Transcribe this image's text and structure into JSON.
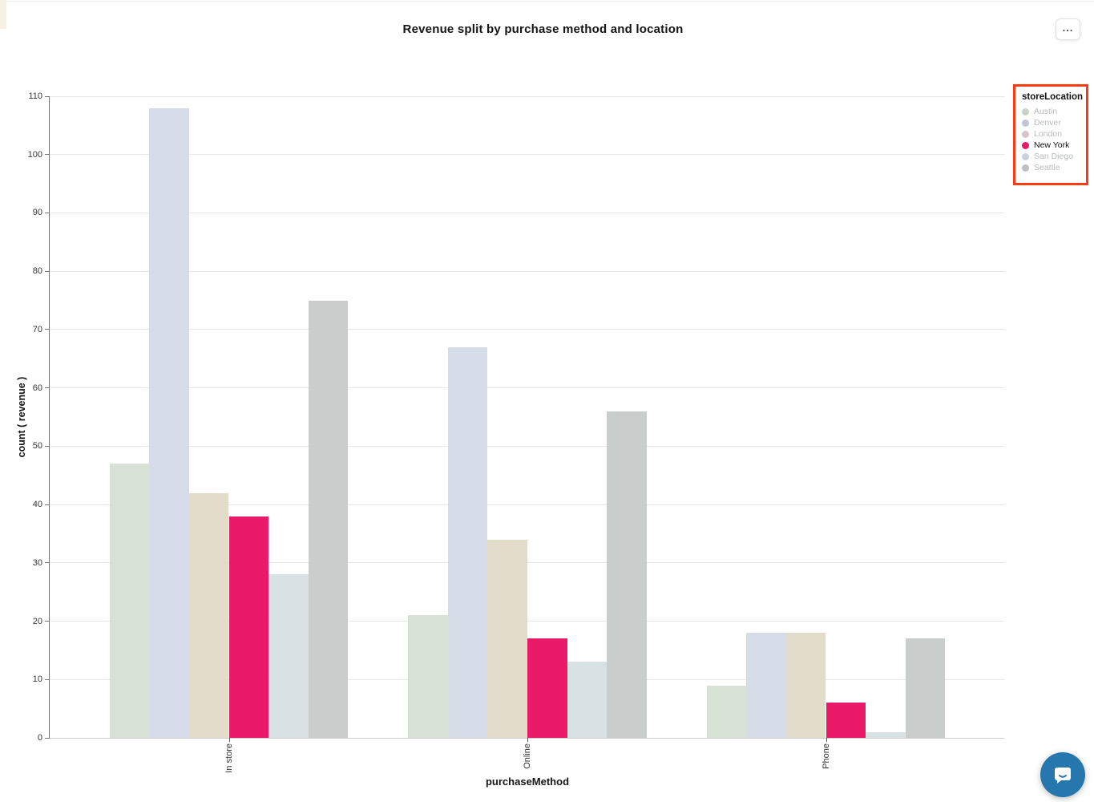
{
  "header": {
    "title": "Revenue split by purchase method and location"
  },
  "toolbar": {
    "more_icon": "..."
  },
  "chart_data": {
    "type": "bar",
    "title": "Revenue split by purchase method and location",
    "xlabel": "purchaseMethod",
    "ylabel": "count ( revenue )",
    "categories": [
      "In store",
      "Online",
      "Phone"
    ],
    "series": [
      {
        "name": "Austin",
        "color": "#d3ded2",
        "selected": false,
        "values": [
          47,
          21,
          9
        ]
      },
      {
        "name": "Denver",
        "color": "#d2d9e6",
        "selected": false,
        "values": [
          108,
          67,
          18
        ]
      },
      {
        "name": "London",
        "color": "#ded9c4",
        "selected": false,
        "values": [
          42,
          34,
          18
        ]
      },
      {
        "name": "New York",
        "color": "#e91a67",
        "selected": true,
        "values": [
          38,
          17,
          6
        ]
      },
      {
        "name": "San Diego",
        "color": "#d4dfe2",
        "selected": false,
        "values": [
          28,
          13,
          1
        ]
      },
      {
        "name": "Seattle",
        "color": "#c3c8c6",
        "selected": false,
        "values": [
          75,
          56,
          17
        ]
      }
    ],
    "y_ticks": [
      0,
      10,
      20,
      30,
      40,
      50,
      60,
      70,
      80,
      90,
      100,
      110
    ],
    "ylim": [
      0,
      110
    ],
    "grid": true,
    "legend_position": "right"
  },
  "legend": {
    "title": "storeLocation",
    "highlight_color": "#fc3a13",
    "active_text_color": "#111111",
    "inactive_text_color": "#b9bdbc",
    "items": [
      {
        "label": "Austin",
        "dot_color": "#c9d1c9",
        "active": false
      },
      {
        "label": "Denver",
        "dot_color": "#c0c7d2",
        "active": false
      },
      {
        "label": "London",
        "dot_color": "#d3c6ca",
        "active": false
      },
      {
        "label": "New York",
        "dot_color": "#e91a67",
        "active": true
      },
      {
        "label": "San Diego",
        "dot_color": "#c7d2d6",
        "active": false
      },
      {
        "label": "Seattle",
        "dot_color": "#bcc1c0",
        "active": false
      }
    ]
  },
  "chat": {
    "launcher_color": "#2577ad"
  }
}
